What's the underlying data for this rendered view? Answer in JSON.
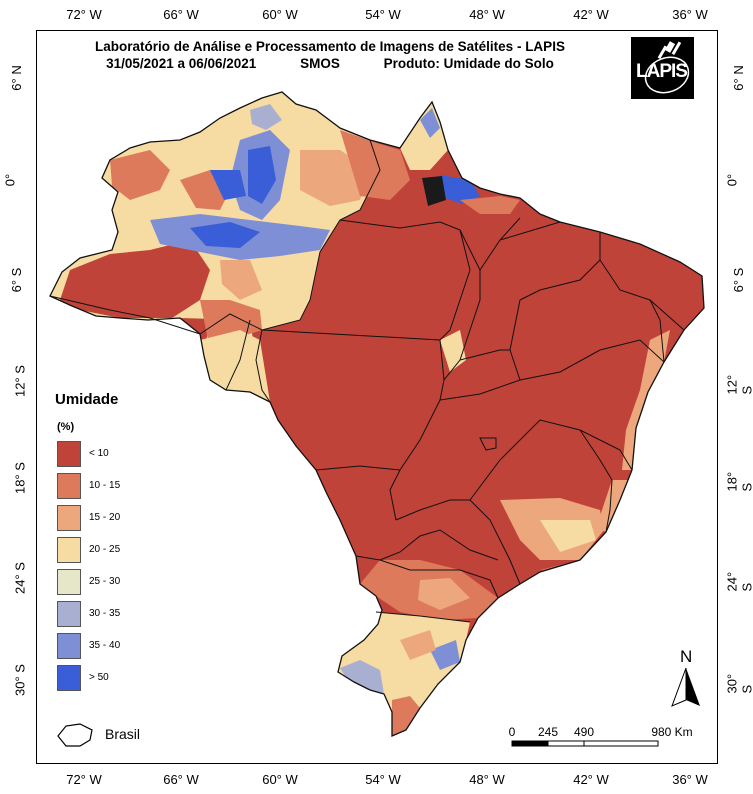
{
  "header": {
    "line1": "Laboratório de Análise e Processamento de Imagens de Satélites - LAPIS",
    "date_range": "31/05/2021  a  06/06/2021",
    "sensor": "SMOS",
    "product": "Produto: Umidade do Solo"
  },
  "logo": {
    "text": "LAPIS"
  },
  "grid": {
    "lon_top": [
      "72° W",
      "66° W",
      "60° W",
      "54° W",
      "48° W",
      "42° W",
      "36° W"
    ],
    "lon_bottom": [
      "72° W",
      "66° W",
      "60° W",
      "54° W",
      "48° W",
      "42° W",
      "36° W"
    ],
    "lat_left": [
      "6° N",
      "0°",
      "6° S",
      "12° S",
      "18° S",
      "24° S",
      "30° S"
    ],
    "lat_right": [
      "6° N",
      "0°",
      "6° S",
      "12° S",
      "18° S",
      "24° S",
      "30° S"
    ]
  },
  "legend": {
    "title": "Umidade",
    "unit": "(%)",
    "items": [
      {
        "label": "< 10",
        "color": "#C0433A"
      },
      {
        "label": "10 - 15",
        "color": "#DE7A5C"
      },
      {
        "label": "15 - 20",
        "color": "#EDA77C"
      },
      {
        "label": "20 - 25",
        "color": "#F6DCA2"
      },
      {
        "label": "25 - 30",
        "color": "#E6E6C8"
      },
      {
        "label": "30 - 35",
        "color": "#A9AFD0"
      },
      {
        "label": "35 - 40",
        "color": "#7E8FD6"
      },
      {
        "label": "> 50",
        "color": "#3A5ED8"
      }
    ]
  },
  "brasil_label": "Brasil",
  "scale_bar": {
    "labels": [
      "0",
      "245",
      "490",
      "980 Km"
    ]
  },
  "north": "N"
}
